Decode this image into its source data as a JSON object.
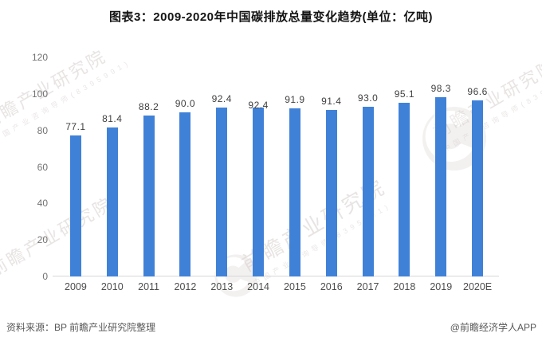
{
  "chart_data": {
    "type": "bar",
    "title": "图表3：2009-2020年中国碳排放总量变化趋势(单位：亿吨)",
    "categories": [
      "2009",
      "2010",
      "2011",
      "2012",
      "2013",
      "2014",
      "2015",
      "2016",
      "2017",
      "2018",
      "2019",
      "2020E"
    ],
    "values": [
      77.1,
      81.4,
      88.2,
      90.0,
      92.4,
      92.4,
      91.9,
      91.4,
      93.0,
      95.1,
      98.3,
      96.6
    ],
    "labels": [
      "77.1",
      "81.4",
      "88.2",
      "90.0",
      "92.4",
      "92.4",
      "91.9",
      "91.4",
      "93.0",
      "95.1",
      "98.3",
      "96.6"
    ],
    "xlabel": "",
    "ylabel": "",
    "unit": "亿吨",
    "ylim": [
      0,
      120
    ],
    "yticks": [
      0,
      20,
      40,
      60,
      80,
      100,
      120
    ],
    "grid": false,
    "legend": "none",
    "bar_color": "#4081d8",
    "axis_line_color": "#d7d7d7",
    "value_label_color": "#3f3f3f",
    "label_offsets": [
      0,
      0,
      0,
      0,
      0,
      8,
      0,
      0,
      0,
      0,
      0,
      0
    ]
  },
  "footer": {
    "source": "资料来源：BP 前瞻产业研究院整理",
    "credit": "@前瞻经济学人APP"
  },
  "watermark": {
    "text": "前瞻产业研究院",
    "subtext": "中国产业咨询导师(8395991)"
  }
}
